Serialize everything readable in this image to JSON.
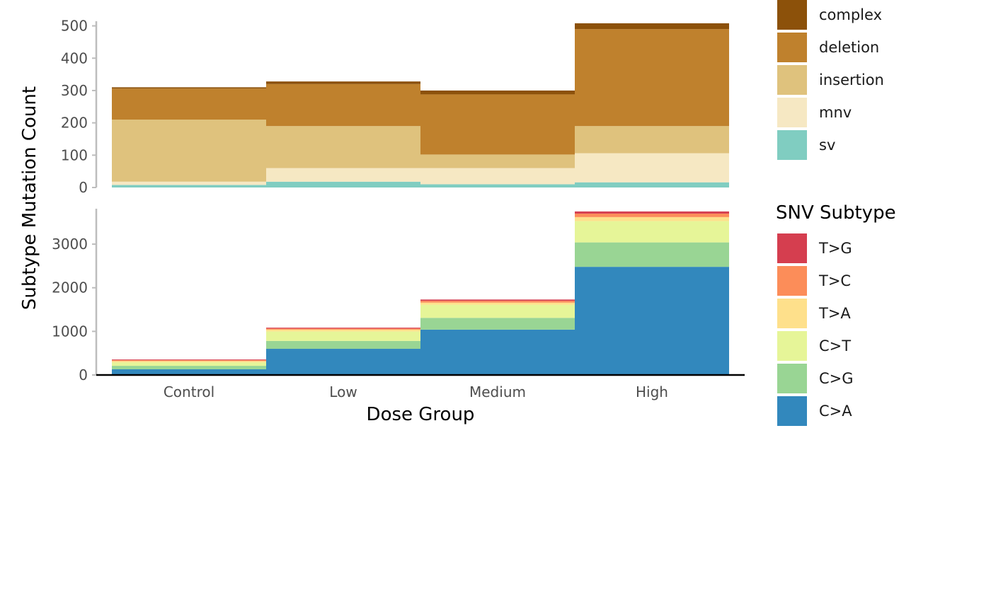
{
  "chart_data": {
    "type": "bar",
    "stacking": "stacked",
    "bar_gap": "none",
    "xlabel": "Dose Group",
    "ylabel": "Subtype Mutation Count",
    "categories": [
      "Control",
      "Low",
      "Medium",
      "High"
    ],
    "panels": [
      {
        "id": "top",
        "legend_title": "",
        "ylim": [
          0,
          510
        ],
        "yticks": [
          0,
          100,
          200,
          300,
          400,
          500
        ],
        "stack_order_bottom_to_top": [
          "sv",
          "mnv",
          "insertion",
          "deletion",
          "complex"
        ],
        "series": [
          {
            "name": "sv",
            "color": "#80CDC1",
            "values": [
              8,
              18,
              10,
              16
            ]
          },
          {
            "name": "mnv",
            "color": "#F6E8C3",
            "values": [
              10,
              42,
              50,
              90
            ]
          },
          {
            "name": "insertion",
            "color": "#DFC27D",
            "values": [
              192,
              130,
              42,
              84
            ]
          },
          {
            "name": "deletion",
            "color": "#BF812D",
            "values": [
              96,
              130,
              186,
              300
            ]
          },
          {
            "name": "complex",
            "color": "#8C510A",
            "values": [
              4,
              8,
              12,
              18
            ]
          }
        ],
        "legend_order": [
          "complex",
          "deletion",
          "insertion",
          "mnv",
          "sv"
        ]
      },
      {
        "id": "bottom",
        "legend_title": "SNV Subtype",
        "ylim": [
          0,
          3780
        ],
        "yticks": [
          0,
          1000,
          2000,
          3000
        ],
        "stack_order_bottom_to_top": [
          "C>A",
          "C>G",
          "C>T",
          "T>A",
          "T>C",
          "T>G"
        ],
        "series": [
          {
            "name": "C>A",
            "color": "#3288BD",
            "values": [
              130,
              600,
              1040,
              2480
            ]
          },
          {
            "name": "C>G",
            "color": "#99D594",
            "values": [
              80,
              180,
              270,
              560
            ]
          },
          {
            "name": "C>T",
            "color": "#E6F598",
            "values": [
              80,
              220,
              300,
              490
            ]
          },
          {
            "name": "T>A",
            "color": "#FEE08B",
            "values": [
              30,
              40,
              50,
              90
            ]
          },
          {
            "name": "T>C",
            "color": "#FC8D59",
            "values": [
              20,
              25,
              40,
              80
            ]
          },
          {
            "name": "T>G",
            "color": "#D53E4F",
            "values": [
              15,
              20,
              30,
              50
            ]
          }
        ],
        "legend_order": [
          "T>G",
          "T>C",
          "T>A",
          "C>T",
          "C>G",
          "C>A"
        ]
      }
    ]
  }
}
